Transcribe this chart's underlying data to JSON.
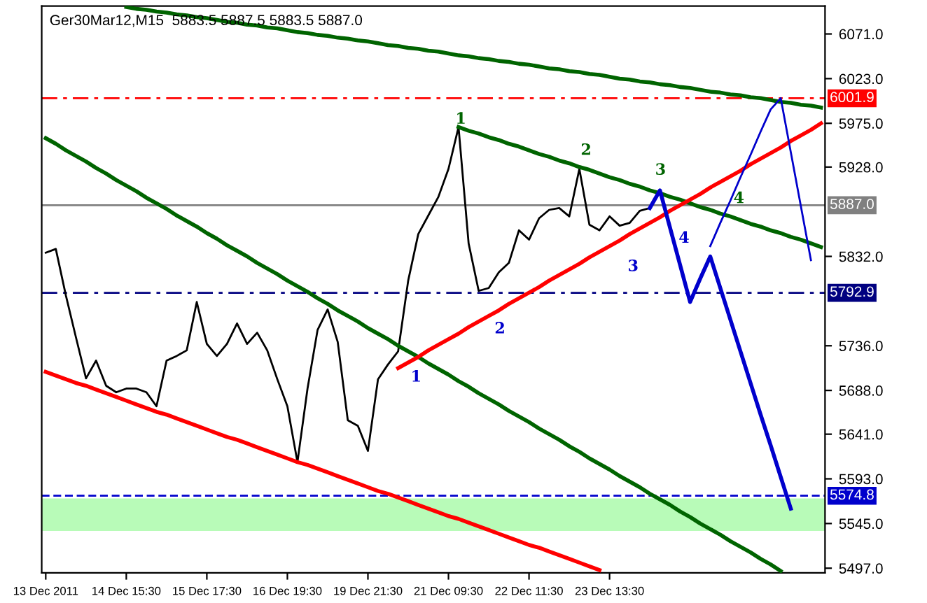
{
  "chart_data": {
    "type": "line",
    "title": "Ger30Mar12,M15  5883.5 5887.5 5883.5 5887.0",
    "categories": [
      "13 Dec 2011",
      null,
      null,
      null,
      null,
      null,
      null,
      null,
      "14 Dec 15:30",
      null,
      null,
      null,
      null,
      null,
      null,
      null,
      "15 Dec 17:30",
      null,
      null,
      null,
      null,
      null,
      null,
      null,
      "16 Dec 19:30",
      null,
      null,
      null,
      null,
      null,
      null,
      null,
      "19 Dec 21:30",
      null,
      null,
      null,
      null,
      null,
      null,
      null,
      "21 Dec 09:30",
      null,
      null,
      null,
      null,
      null,
      null,
      null,
      "22 Dec 11:30",
      null,
      null,
      null,
      null,
      null,
      null,
      null,
      "23 Dec 13:30",
      null,
      null,
      null,
      null,
      null,
      null,
      null,
      null,
      null,
      null,
      null,
      null,
      null,
      null,
      null,
      null,
      null,
      null,
      null,
      null,
      null
    ],
    "ylim": [
      5492,
      6101
    ],
    "yticks": [
      {
        "value": 6071,
        "label": "6071.0"
      },
      {
        "value": 6023,
        "label": "6023.0"
      },
      {
        "value": 5975,
        "label": "5975.0"
      },
      {
        "value": 5928,
        "label": "5928.0"
      },
      {
        "value": 5832,
        "label": "5832.0"
      },
      {
        "value": 5736,
        "label": "5736.0"
      },
      {
        "value": 5688,
        "label": "5688.0"
      },
      {
        "value": 5641,
        "label": "5641.0"
      },
      {
        "value": 5593,
        "label": "5593.0"
      },
      {
        "value": 5545,
        "label": "5545.0"
      },
      {
        "value": 5497,
        "label": "5497.0"
      }
    ],
    "series": [
      {
        "color": "#000000",
        "values": [
          5836,
          5840,
          5790,
          5745,
          5701,
          5720,
          5693,
          5686,
          5690,
          5690,
          5686,
          5671,
          5720,
          5725,
          5731,
          5783,
          5738,
          5725,
          5738,
          5760,
          5738,
          5750,
          5731,
          5700,
          5671,
          5611,
          5690,
          5753,
          5775,
          5740,
          5656,
          5650,
          5623,
          5700,
          5716,
          5730,
          5806,
          5856,
          5876,
          5896,
          5926,
          5971,
          5846,
          5795,
          5798,
          5815,
          5825,
          5860,
          5850,
          5873,
          5882,
          5884,
          5875,
          5926,
          5866,
          5860,
          5875,
          5865,
          5868,
          5881,
          5884,
          null,
          null,
          null,
          null,
          null,
          null,
          null,
          null,
          null,
          null,
          null,
          null,
          null,
          null,
          null,
          null,
          null
        ]
      },
      {
        "color": "#006400",
        "values": [
          null,
          null,
          null,
          null,
          null,
          null,
          null,
          null,
          6100,
          6098,
          6097,
          6095,
          6094,
          6092,
          6091,
          6089,
          6088,
          6086,
          6084,
          6083,
          6081,
          6080,
          6078,
          6077,
          6075,
          6073,
          6072,
          6070,
          6069,
          6067,
          6066,
          6064,
          6063,
          6061,
          6059,
          6058,
          6056,
          6055,
          6053,
          6052,
          6050,
          6048,
          6047,
          6045,
          6044,
          6042,
          6041,
          6039,
          6038,
          6036,
          6034,
          6033,
          6031,
          6030,
          6028,
          6027,
          6025,
          6023,
          6022,
          6020,
          6019,
          6017,
          6016,
          6014,
          6013,
          6011,
          6009,
          6008,
          6006,
          6005,
          6003,
          6002,
          6000,
          5998,
          5997,
          5995,
          5994,
          5992
        ]
      },
      {
        "color": "#006400",
        "values": [
          5959,
          5953,
          5946,
          5940,
          5934,
          5927,
          5921,
          5914,
          5908,
          5902,
          5895,
          5889,
          5883,
          5876,
          5870,
          5864,
          5857,
          5851,
          5844,
          5838,
          5832,
          5825,
          5819,
          5813,
          5806,
          5800,
          5794,
          5787,
          5781,
          5774,
          5768,
          5762,
          5755,
          5749,
          5743,
          5736,
          5730,
          5724,
          5717,
          5711,
          5705,
          5698,
          5692,
          5685,
          5679,
          5673,
          5666,
          5660,
          5654,
          5647,
          5641,
          5635,
          5628,
          5622,
          5615,
          5609,
          5603,
          5596,
          5590,
          5584,
          5577,
          5571,
          5565,
          5558,
          5552,
          5545,
          5539,
          5533,
          5526,
          5520,
          5514,
          5507,
          5501,
          5494,
          null,
          null,
          null,
          null
        ]
      },
      {
        "color": "#006400",
        "values": [
          null,
          null,
          null,
          null,
          null,
          null,
          null,
          null,
          null,
          null,
          null,
          null,
          null,
          null,
          null,
          null,
          null,
          null,
          null,
          null,
          null,
          null,
          null,
          null,
          null,
          null,
          null,
          null,
          null,
          null,
          null,
          null,
          null,
          null,
          null,
          null,
          null,
          null,
          null,
          null,
          null,
          5971,
          5967,
          5964,
          5960,
          5957,
          5953,
          5950,
          5946,
          5942,
          5939,
          5935,
          5932,
          5928,
          5925,
          5921,
          5917,
          5914,
          5910,
          5907,
          5903,
          5900,
          5896,
          5893,
          5889,
          5885,
          5882,
          5878,
          5875,
          5871,
          5867,
          5864,
          5860,
          5857,
          5853,
          5850,
          5846,
          5842
        ]
      },
      {
        "color": "#ff0000",
        "values": [
          5708,
          5704,
          5700,
          5696,
          5693,
          5689,
          5685,
          5681,
          5677,
          5673,
          5669,
          5665,
          5662,
          5658,
          5654,
          5650,
          5646,
          5642,
          5638,
          5635,
          5631,
          5627,
          5623,
          5619,
          5615,
          5611,
          5608,
          5604,
          5600,
          5596,
          5592,
          5588,
          5584,
          5580,
          5577,
          5573,
          5569,
          5565,
          5561,
          5557,
          5553,
          5550,
          5546,
          5542,
          5538,
          5534,
          5530,
          5526,
          5522,
          5519,
          5515,
          5511,
          5507,
          5503,
          5499,
          5495,
          null,
          null,
          null,
          null,
          null,
          null,
          null,
          null,
          null,
          null,
          null,
          null,
          null,
          null,
          null,
          null,
          null,
          null,
          null,
          null,
          null,
          null
        ]
      },
      {
        "color": "#ff0000",
        "values": [
          null,
          null,
          null,
          null,
          null,
          null,
          null,
          null,
          null,
          null,
          null,
          null,
          null,
          null,
          null,
          null,
          null,
          null,
          null,
          null,
          null,
          null,
          null,
          null,
          null,
          null,
          null,
          null,
          null,
          null,
          null,
          null,
          null,
          null,
          null,
          5712,
          5718,
          5724,
          5731,
          5737,
          5743,
          5749,
          5756,
          5762,
          5768,
          5774,
          5781,
          5787,
          5793,
          5799,
          5806,
          5812,
          5818,
          5824,
          5831,
          5837,
          5843,
          5849,
          5856,
          5862,
          5868,
          5874,
          5881,
          5887,
          5893,
          5899,
          5906,
          5912,
          5918,
          5924,
          5931,
          5937,
          5943,
          5949,
          5956,
          5962,
          5968,
          5975
        ]
      },
      {
        "color": "#0000cc",
        "values": [
          null,
          null,
          null,
          null,
          null,
          null,
          null,
          null,
          null,
          null,
          null,
          null,
          null,
          null,
          null,
          null,
          null,
          null,
          null,
          null,
          null,
          null,
          null,
          null,
          null,
          null,
          null,
          null,
          null,
          null,
          null,
          null,
          null,
          null,
          null,
          null,
          null,
          null,
          null,
          null,
          null,
          null,
          null,
          null,
          null,
          null,
          null,
          null,
          null,
          null,
          null,
          null,
          null,
          null,
          null,
          null,
          null,
          null,
          null,
          null,
          5884,
          5903,
          5863,
          5823,
          5783,
          5808,
          5832,
          5798,
          5764,
          5730,
          5696,
          5662,
          5629,
          5595,
          5561,
          null,
          null,
          null
        ]
      },
      {
        "color": "#0000cc",
        "values": [
          null,
          null,
          null,
          null,
          null,
          null,
          null,
          null,
          null,
          null,
          null,
          null,
          null,
          null,
          null,
          null,
          null,
          null,
          null,
          null,
          null,
          null,
          null,
          null,
          null,
          null,
          null,
          null,
          null,
          null,
          null,
          null,
          null,
          null,
          null,
          null,
          null,
          null,
          null,
          null,
          null,
          null,
          null,
          null,
          null,
          null,
          null,
          null,
          null,
          null,
          null,
          null,
          null,
          null,
          null,
          null,
          null,
          null,
          null,
          null,
          null,
          null,
          null,
          null,
          null,
          null,
          5843,
          5868,
          5892,
          5917,
          5941,
          5966,
          5990,
          6002,
          5944,
          5886,
          5828,
          null
        ]
      }
    ],
    "ref_lines": [
      {
        "axis": "y",
        "value": 6001.9,
        "label": "6001.9",
        "color": "#ff0000",
        "line_style": "dashdot"
      },
      {
        "axis": "y",
        "value": 5887.0,
        "label": "5887.0",
        "color": "#808080",
        "line_style": "solid"
      },
      {
        "axis": "y",
        "value": 5792.9,
        "label": "5792.9",
        "color": "#000080",
        "line_style": "dashdot"
      },
      {
        "axis": "y",
        "value": 5574.8,
        "label": "5574.8",
        "color": "#0000cc",
        "line_style": "dashed"
      }
    ],
    "bands": [
      {
        "axis": "y",
        "from": 5537,
        "to": 5572,
        "color": "#b8fbb8"
      }
    ],
    "annotations": [
      "1",
      "2",
      "3",
      "4",
      "1",
      "2",
      "3",
      "4"
    ]
  }
}
